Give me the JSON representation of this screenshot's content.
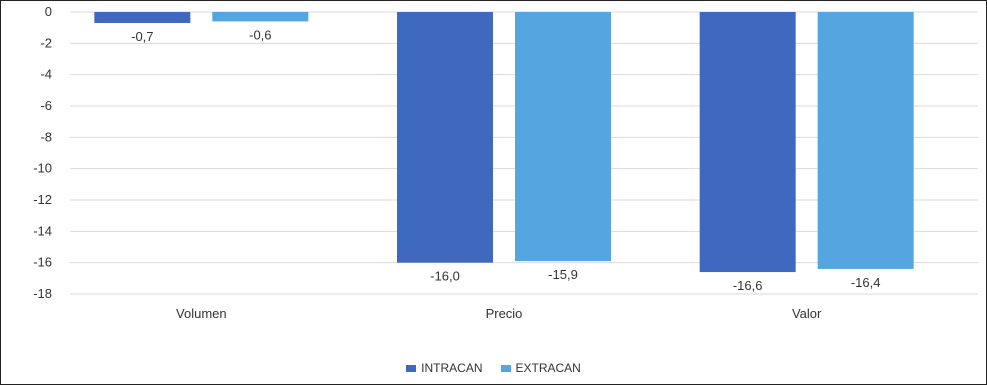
{
  "chart_data": {
    "type": "bar",
    "categories": [
      "Volumen",
      "Precio",
      "Valor"
    ],
    "series": [
      {
        "name": "INTRACAN",
        "color": "#3f68bf",
        "values": [
          -0.7,
          -16.0,
          -16.6
        ],
        "labels": [
          "-0,7",
          "-16,0",
          "-16,6"
        ]
      },
      {
        "name": "EXTRACAN",
        "color": "#55a6e0",
        "values": [
          -0.6,
          -15.9,
          -16.4
        ],
        "labels": [
          "-0,6",
          "-15,9",
          "-16,4"
        ]
      }
    ],
    "ylim": [
      -18,
      0
    ],
    "yticks": [
      0,
      -2,
      -4,
      -6,
      -8,
      -10,
      -12,
      -14,
      -16,
      -18
    ],
    "ytick_labels": [
      "0",
      "-2",
      "-4",
      "-6",
      "-8",
      "-10",
      "-12",
      "-14",
      "-16",
      "-18"
    ],
    "grid": true,
    "legend_position": "bottom"
  }
}
